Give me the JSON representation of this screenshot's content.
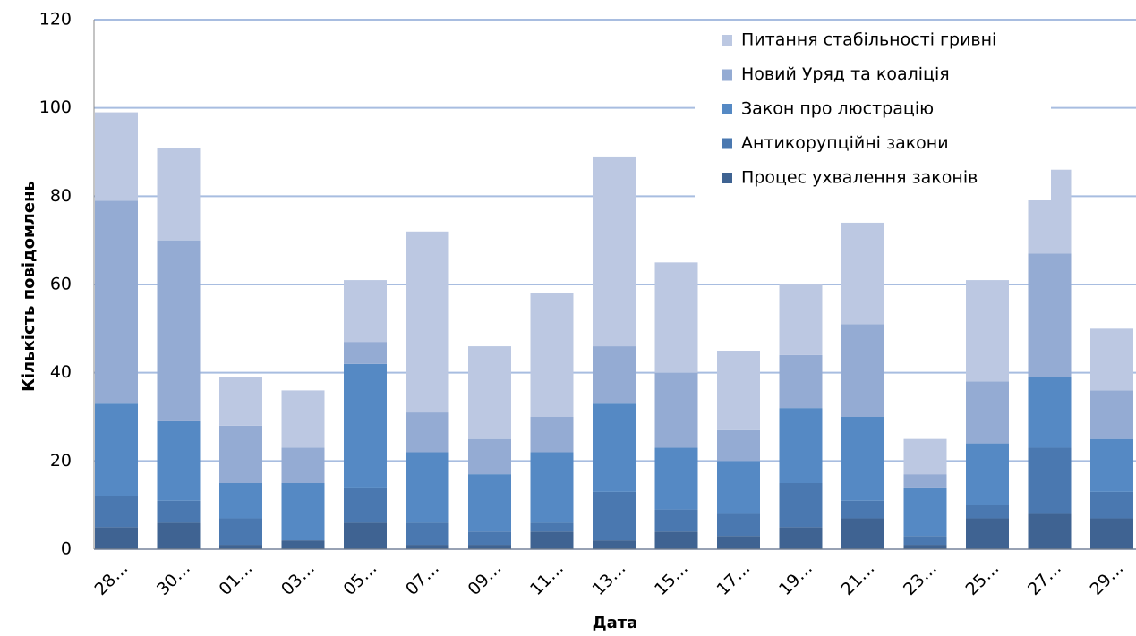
{
  "chart_data": {
    "type": "stacked_bar",
    "x_label": "Дата",
    "y_label": "Кількість повідомлень",
    "categories": [
      "28…",
      "30…",
      "01…",
      "03…",
      "05…",
      "07…",
      "09…",
      "11…",
      "13…",
      "15…",
      "17…",
      "19…",
      "21…",
      "23…",
      "25…",
      "27…",
      "29…"
    ],
    "series": [
      {
        "name": "Процес ухвалення законів",
        "color": "#3f6392",
        "values": [
          5,
          6,
          1,
          2,
          6,
          1,
          1,
          4,
          2,
          4,
          3,
          5,
          7,
          1,
          7,
          8,
          7
        ]
      },
      {
        "name": "Антикорупційні закони",
        "color": "#4a78b0",
        "values": [
          7,
          5,
          6,
          0,
          8,
          5,
          3,
          2,
          11,
          5,
          5,
          10,
          4,
          2,
          3,
          15,
          6
        ]
      },
      {
        "name": "Закон про люстрацію",
        "color": "#5589c4",
        "values": [
          21,
          18,
          8,
          13,
          28,
          16,
          13,
          16,
          20,
          14,
          12,
          17,
          19,
          11,
          14,
          16,
          12
        ]
      },
      {
        "name": "Новий Уряд та коаліція",
        "color": "#94abd3",
        "values": [
          46,
          41,
          13,
          8,
          5,
          9,
          8,
          8,
          13,
          17,
          7,
          12,
          21,
          3,
          14,
          28,
          11
        ]
      },
      {
        "name": "Питання стабільності гривні",
        "color": "#bcc8e2",
        "values": [
          20,
          21,
          11,
          13,
          14,
          41,
          21,
          28,
          43,
          25,
          18,
          16,
          23,
          8,
          23,
          19,
          14
        ]
      }
    ],
    "ylim": [
      0,
      120
    ],
    "yticks": [
      0,
      20,
      40,
      60,
      80,
      100,
      120
    ],
    "grid": true,
    "legend": "upper right"
  }
}
